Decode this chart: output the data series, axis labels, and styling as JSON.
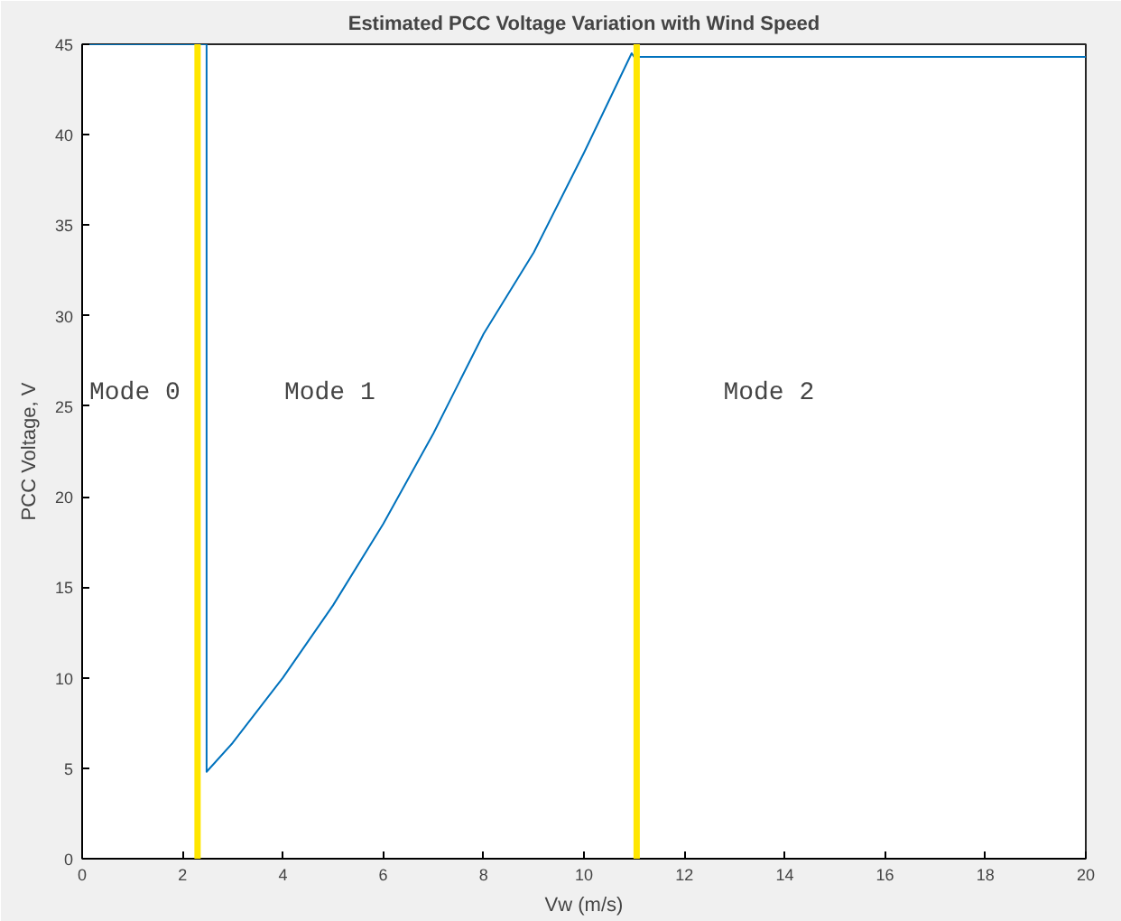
{
  "chart_data": {
    "type": "line",
    "title": "Estimated PCC Voltage Variation with Wind Speed",
    "xlabel": "Vw (m/s)",
    "ylabel": "PCC Voltage, V",
    "xlim": [
      0,
      20
    ],
    "ylim": [
      0,
      45
    ],
    "xticks": [
      0,
      2,
      4,
      6,
      8,
      10,
      12,
      14,
      16,
      18,
      20
    ],
    "yticks": [
      0,
      5,
      10,
      15,
      20,
      25,
      30,
      35,
      40,
      45
    ],
    "grid": false,
    "marker": "none",
    "line_style": "solid",
    "series": [
      {
        "color": "#0072bd",
        "x": [
          0,
          2.48,
          2.48,
          3,
          4,
          5,
          6,
          7,
          8,
          9,
          10,
          10.95,
          11,
          20
        ],
        "values": [
          45,
          45,
          4.8,
          6.4,
          10,
          14,
          18.5,
          23.5,
          29,
          33.5,
          39,
          44.5,
          44.3,
          44.3
        ]
      }
    ],
    "ref_lines": [
      {
        "axis": "x",
        "value": 2.3,
        "color": "#ffe600"
      },
      {
        "axis": "x",
        "value": 11.05,
        "color": "#ffe600"
      }
    ],
    "annotations": [
      "Mode 0",
      "Mode 1",
      "Mode 2"
    ]
  }
}
